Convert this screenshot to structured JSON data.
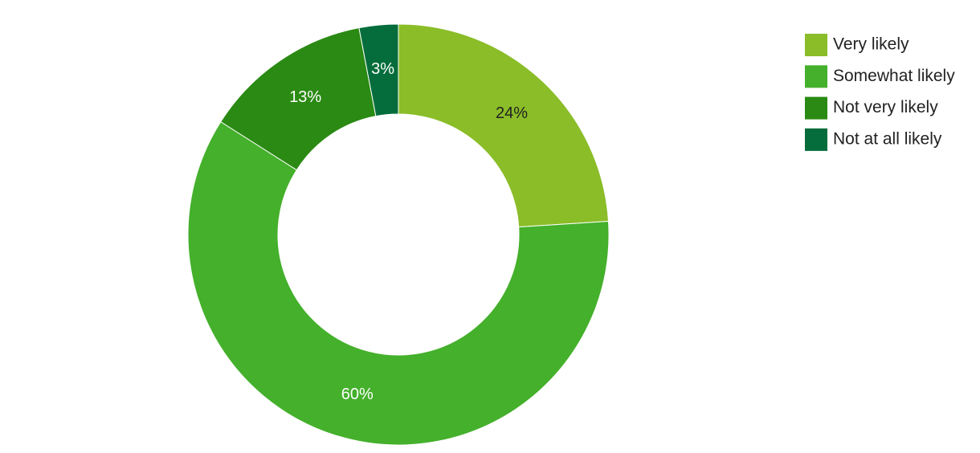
{
  "chart_data": {
    "type": "donut",
    "categories": [
      "Very likely",
      "Somewhat likely",
      "Not very likely",
      "Not at all likely"
    ],
    "values": [
      24,
      60,
      13,
      3
    ],
    "value_labels": [
      "24%",
      "60%",
      "13%",
      "3%"
    ],
    "colors": [
      "#8abd28",
      "#44b02b",
      "#2a8a13",
      "#046d3b"
    ],
    "legend": "top-right"
  }
}
